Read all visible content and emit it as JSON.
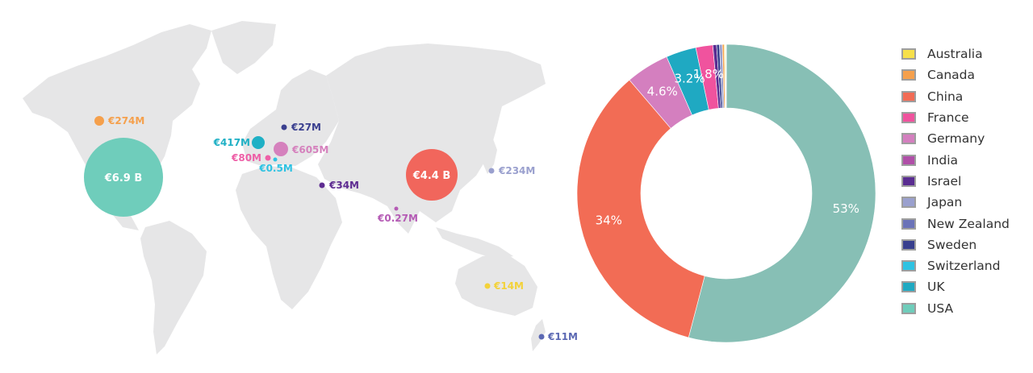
{
  "chart_data": [
    {
      "type": "bubble-map",
      "markers": [
        {
          "country": "USA",
          "label": "€6.9 B",
          "value_eur_m": 6900,
          "color": "#6fcdbb"
        },
        {
          "country": "China",
          "label": "€4.4 B",
          "value_eur_m": 4400,
          "color": "#f1665c"
        },
        {
          "country": "Canada",
          "label": "€274M",
          "value_eur_m": 274,
          "color": "#f5a04c"
        },
        {
          "country": "UK",
          "label": "€417M",
          "value_eur_m": 417,
          "color": "#1fb0c5"
        },
        {
          "country": "France",
          "label": "€80M",
          "value_eur_m": 80,
          "color": "#ee5fa7"
        },
        {
          "country": "Switzerland",
          "label": "€0.5M",
          "value_eur_m": 0.5,
          "color": "#2ec2e2"
        },
        {
          "country": "Germany",
          "label": "€605M",
          "value_eur_m": 605,
          "color": "#d581bd"
        },
        {
          "country": "Sweden",
          "label": "€27M",
          "value_eur_m": 27,
          "color": "#3a3f8f"
        },
        {
          "country": "Israel",
          "label": "€34M",
          "value_eur_m": 34,
          "color": "#5e2c91"
        },
        {
          "country": "India",
          "label": "€0.27M",
          "value_eur_m": 0.27,
          "color": "#b55bb5"
        },
        {
          "country": "Japan",
          "label": "€234M",
          "value_eur_m": 234,
          "color": "#9aa0ce"
        },
        {
          "country": "Australia",
          "label": "€14M",
          "value_eur_m": 14,
          "color": "#f3d23a"
        },
        {
          "country": "New Zealand",
          "label": "€11M",
          "value_eur_m": 11,
          "color": "#5b68b3"
        }
      ]
    },
    {
      "type": "pie",
      "donut": true,
      "slices": [
        {
          "name": "USA",
          "value": 53,
          "label": "53%",
          "color": "#87bfb5"
        },
        {
          "name": "China",
          "value": 34,
          "label": "34%",
          "color": "#f26c55"
        },
        {
          "name": "Germany",
          "value": 4.6,
          "label": "4.6%",
          "color": "#d47fbf"
        },
        {
          "name": "UK",
          "value": 3.2,
          "label": "3.2%",
          "color": "#1fa9c2"
        },
        {
          "name": "France",
          "value": 1.8,
          "label": "1.8%",
          "color": "#f0539e"
        },
        {
          "name": "Israel",
          "value": 0.4,
          "label": "",
          "color": "#5a2d91"
        },
        {
          "name": "Sweden",
          "value": 0.3,
          "label": "",
          "color": "#383f8e"
        },
        {
          "name": "Japan",
          "value": 0.3,
          "label": "",
          "color": "#9aa0ce"
        },
        {
          "name": "Canada",
          "value": 0.2,
          "label": "",
          "color": "#f5a04c"
        },
        {
          "name": "Australia",
          "value": 0.1,
          "label": "",
          "color": "#f7e04a"
        },
        {
          "name": "India",
          "value": 0.05,
          "label": "",
          "color": "#b04fa8"
        },
        {
          "name": "New Zealand",
          "value": 0.05,
          "label": "",
          "color": "#6a72b8"
        },
        {
          "name": "Switzerland",
          "value": 0.02,
          "label": "",
          "color": "#2ec2e2"
        }
      ],
      "legend": {
        "placement": "right",
        "entries": [
          {
            "name": "Australia",
            "color": "#f7e04a"
          },
          {
            "name": "Canada",
            "color": "#f5a04c"
          },
          {
            "name": "China",
            "color": "#f26c55"
          },
          {
            "name": "France",
            "color": "#f0539e"
          },
          {
            "name": "Germany",
            "color": "#d47fbf"
          },
          {
            "name": "India",
            "color": "#b04fa8"
          },
          {
            "name": "Israel",
            "color": "#5a2d91"
          },
          {
            "name": "Japan",
            "color": "#9aa0ce"
          },
          {
            "name": "New Zealand",
            "color": "#6a72b8"
          },
          {
            "name": "Sweden",
            "color": "#383f8e"
          },
          {
            "name": "Switzerland",
            "color": "#2ec2e2"
          },
          {
            "name": "UK",
            "color": "#1fa9c2"
          },
          {
            "name": "USA",
            "color": "#6fcdbb"
          }
        ]
      }
    }
  ]
}
